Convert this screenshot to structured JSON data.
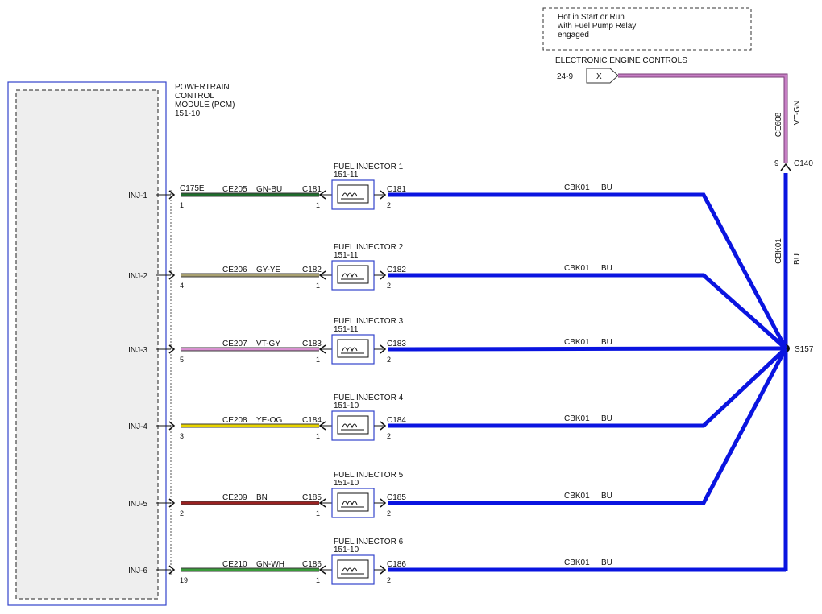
{
  "note": {
    "lines": [
      "Hot in Start or Run",
      "with Fuel Pump Relay",
      "engaged"
    ]
  },
  "eec": {
    "title": "ELECTRONIC ENGINE CONTROLS",
    "ref": "24-9",
    "pin": "X",
    "wire_circuit": "CE608",
    "wire_color": "VT-GN",
    "connector_pin": "9",
    "connector": "C140"
  },
  "pcm": {
    "lines": [
      "POWERTRAIN",
      "CONTROL",
      "MODULE (PCM)",
      "151-10"
    ],
    "connector": "C175E"
  },
  "ground_wire": {
    "circuit": "CBK01",
    "color": "BU",
    "splice": "S157"
  },
  "colors": {
    "pcm_border": "#3344cc",
    "injector_border": "#3344cc",
    "bus": "#0a14e0",
    "eec_wire": "#c77fc4"
  },
  "channels": [
    {
      "pcm_pin_label": "INJ-1",
      "pcm_pin": "1",
      "circuit": "CE205",
      "color_code": "GN-BU",
      "wire_color": "#1f6b2c",
      "conn": "C181",
      "conn_pin_in": "1",
      "injector": "FUEL INJECTOR 1",
      "injector_ref": "151-11",
      "conn_out": "C181",
      "conn_pin_out": "2",
      "out_circuit": "CBK01",
      "out_color": "BU"
    },
    {
      "pcm_pin_label": "INJ-2",
      "pcm_pin": "4",
      "circuit": "CE206",
      "color_code": "GY-YE",
      "wire_color": "#a8a070",
      "conn": "C182",
      "conn_pin_in": "1",
      "injector": "FUEL INJECTOR 2",
      "injector_ref": "151-11",
      "conn_out": "C182",
      "conn_pin_out": "2",
      "out_circuit": "CBK01",
      "out_color": "BU"
    },
    {
      "pcm_pin_label": "INJ-3",
      "pcm_pin": "5",
      "circuit": "CE207",
      "color_code": "VT-GY",
      "wire_color": "#d890d0",
      "conn": "C183",
      "conn_pin_in": "1",
      "injector": "FUEL INJECTOR 3",
      "injector_ref": "151-11",
      "conn_out": "C183",
      "conn_pin_out": "2",
      "out_circuit": "CBK01",
      "out_color": "BU"
    },
    {
      "pcm_pin_label": "INJ-4",
      "pcm_pin": "3",
      "circuit": "CE208",
      "color_code": "YE-OG",
      "wire_color": "#e8d400",
      "conn": "C184",
      "conn_pin_in": "1",
      "injector": "FUEL INJECTOR 4",
      "injector_ref": "151-10",
      "conn_out": "C184",
      "conn_pin_out": "2",
      "out_circuit": "CBK01",
      "out_color": "BU"
    },
    {
      "pcm_pin_label": "INJ-5",
      "pcm_pin": "2",
      "circuit": "CE209",
      "color_code": "BN",
      "wire_color": "#9a2222",
      "conn": "C185",
      "conn_pin_in": "1",
      "injector": "FUEL INJECTOR 5",
      "injector_ref": "151-10",
      "conn_out": "C185",
      "conn_pin_out": "2",
      "out_circuit": "CBK01",
      "out_color": "BU"
    },
    {
      "pcm_pin_label": "INJ-6",
      "pcm_pin": "19",
      "circuit": "CE210",
      "color_code": "GN-WH",
      "wire_color": "#3a9a3a",
      "conn": "C186",
      "conn_pin_in": "1",
      "injector": "FUEL INJECTOR 6",
      "injector_ref": "151-10",
      "conn_out": "C186",
      "conn_pin_out": "2",
      "out_circuit": "CBK01",
      "out_color": "BU"
    }
  ]
}
